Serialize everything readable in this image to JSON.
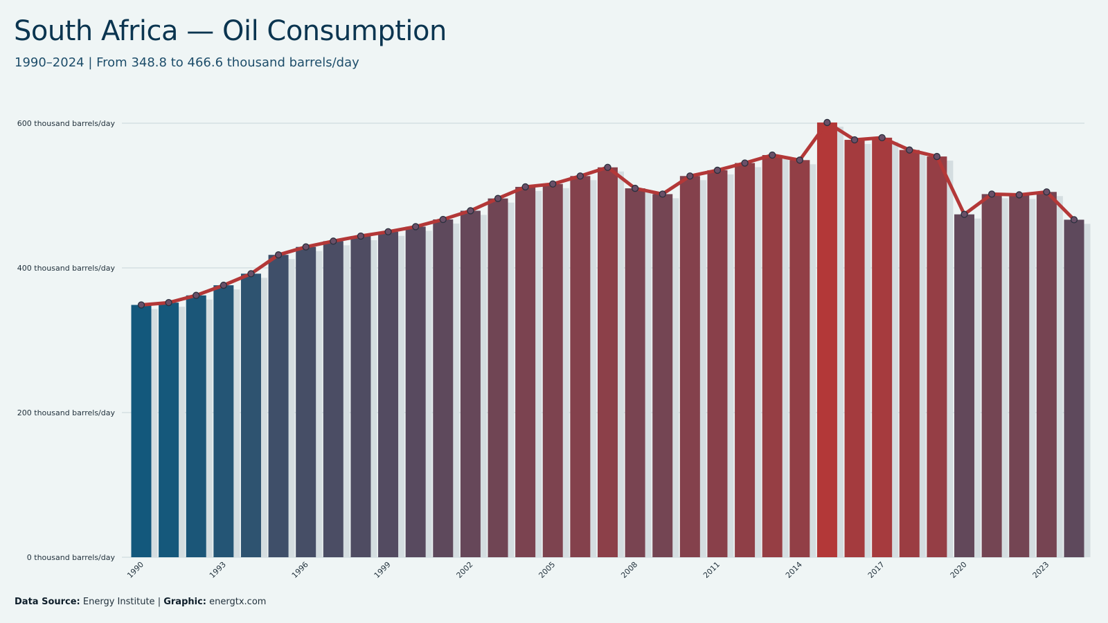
{
  "header": {
    "title": "South Africa — Oil Consumption",
    "subtitle": "1990–2024 | From 348.8 to 466.6 thousand barrels/day"
  },
  "footer": {
    "source_label": "Data Source:",
    "source_value": "Energy Institute",
    "separator": "|",
    "graphic_label": "Graphic:",
    "graphic_value": "energtx.com"
  },
  "colors": {
    "low": "#13587c",
    "high": "#b33838",
    "line": "#b33838",
    "marker_fill": "#6a5068",
    "marker_stroke": "#2a2f3d",
    "grid": "#cfdcdf",
    "bar_shadow": "#d4dde0"
  },
  "chart_data": {
    "type": "bar",
    "title": "South Africa — Oil Consumption",
    "xlabel": "",
    "ylabel": "",
    "ylim": [
      0,
      600
    ],
    "y_ticks": [
      0,
      200,
      400,
      600
    ],
    "y_tick_labels": [
      "0 thousand barrels/day",
      "200 thousand barrels/day",
      "400 thousand barrels/day",
      "600 thousand barrels/day"
    ],
    "x_tick_labels": [
      "1990",
      "1993",
      "1996",
      "1999",
      "2002",
      "2005",
      "2008",
      "2011",
      "2014",
      "2017",
      "2020",
      "2023"
    ],
    "grid": true,
    "categories": [
      "1990",
      "1991",
      "1992",
      "1993",
      "1994",
      "1995",
      "1996",
      "1997",
      "1998",
      "1999",
      "2000",
      "2001",
      "2002",
      "2003",
      "2004",
      "2005",
      "2006",
      "2007",
      "2008",
      "2009",
      "2010",
      "2011",
      "2012",
      "2013",
      "2014",
      "2015",
      "2016",
      "2017",
      "2018",
      "2019",
      "2020",
      "2021",
      "2022",
      "2023",
      "2024"
    ],
    "values": [
      348.8,
      352,
      362,
      376,
      392,
      418,
      429,
      437,
      444,
      450,
      457,
      467,
      479,
      496,
      512,
      516,
      527,
      539,
      510,
      502,
      527,
      535,
      545,
      556,
      549,
      601,
      577,
      580,
      563,
      554,
      474,
      502,
      501,
      505,
      466.6
    ]
  }
}
